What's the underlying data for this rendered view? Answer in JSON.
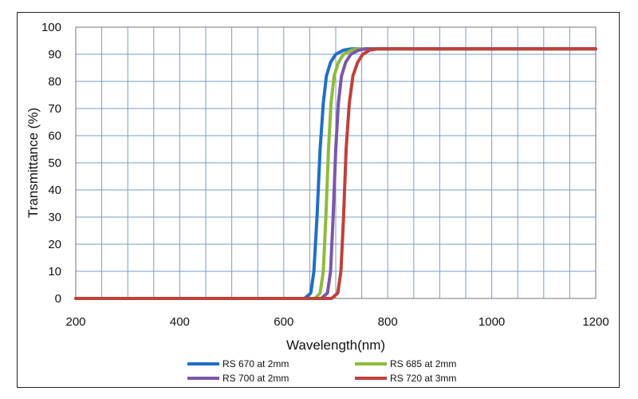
{
  "chart_data": {
    "type": "line",
    "title": "",
    "xlabel": "Wavelength(nm)",
    "ylabel": "Transmittance (%)",
    "xlim": [
      200,
      1200
    ],
    "ylim": [
      0,
      100
    ],
    "x_ticks": [
      200,
      400,
      600,
      800,
      1000,
      1200
    ],
    "y_ticks": [
      0,
      10,
      20,
      30,
      40,
      50,
      60,
      70,
      80,
      90,
      100
    ],
    "x_minor_step": 50,
    "grid": true,
    "legend_position": "bottom",
    "series": [
      {
        "name": "RS 670 at 2mm",
        "color": "#1f6fc6",
        "x": [
          200,
          640,
          652,
          658,
          664,
          670,
          676,
          682,
          690,
          700,
          715,
          730,
          760,
          800,
          1200
        ],
        "y": [
          0,
          0,
          2,
          10,
          30,
          55,
          72,
          82,
          87,
          90,
          91.5,
          92,
          92,
          92,
          92
        ]
      },
      {
        "name": "RS 685 at 2mm",
        "color": "#8dbb3c",
        "x": [
          200,
          660,
          670,
          676,
          681,
          686,
          691,
          697,
          705,
          715,
          730,
          745,
          770,
          800,
          1200
        ],
        "y": [
          0,
          0,
          2,
          10,
          30,
          55,
          72,
          82,
          87,
          90,
          91.5,
          92,
          92,
          92,
          92
        ]
      },
      {
        "name": "RS 700 at 2mm",
        "color": "#7b57a8",
        "x": [
          200,
          672,
          684,
          690,
          695,
          700,
          705,
          711,
          719,
          729,
          744,
          758,
          780,
          800,
          1200
        ],
        "y": [
          0,
          0,
          2,
          10,
          30,
          55,
          72,
          82,
          87,
          90,
          91.5,
          92,
          92,
          92,
          92
        ]
      },
      {
        "name": "RS 720 at 3mm",
        "color": "#c0403b",
        "x": [
          200,
          692,
          704,
          710,
          715,
          720,
          726,
          733,
          742,
          752,
          765,
          780,
          800,
          1200
        ],
        "y": [
          0,
          0,
          2,
          10,
          30,
          55,
          72,
          82,
          87,
          90,
          91.5,
          92,
          92,
          92
        ]
      }
    ]
  }
}
